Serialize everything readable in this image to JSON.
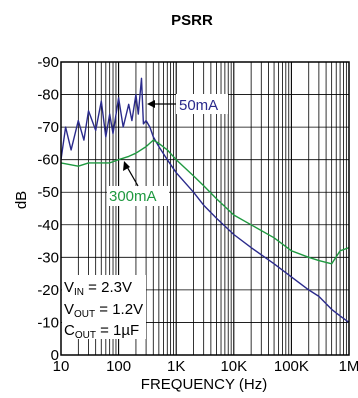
{
  "chart_data": {
    "type": "line",
    "title": "PSRR",
    "xlabel": "FREQUENCY (Hz)",
    "ylabel": "dB",
    "x_scale": "log",
    "xlim": [
      10,
      1000000
    ],
    "ylim": [
      0,
      -90
    ],
    "x_tick_labels": [
      "10",
      "100",
      "1K",
      "10K",
      "100K",
      "1M"
    ],
    "y_tick_labels": [
      "0",
      "-10",
      "-20",
      "-30",
      "-40",
      "-50",
      "-60",
      "-70",
      "-80",
      "-90"
    ],
    "grid": true,
    "series": [
      {
        "name": "50mA",
        "color": "#2b2b8c",
        "x": [
          10,
          12,
          15,
          20,
          25,
          30,
          40,
          50,
          60,
          70,
          80,
          100,
          120,
          150,
          170,
          200,
          220,
          250,
          270,
          300,
          350,
          400,
          500,
          700,
          1000,
          2000,
          3000,
          5000,
          10000,
          20000,
          50000,
          100000,
          200000,
          300000,
          500000,
          700000,
          1000000
        ],
        "y": [
          -60,
          -70,
          -63,
          -72,
          -66,
          -75,
          -69,
          -78,
          -67,
          -74,
          -68,
          -79,
          -70,
          -77,
          -72,
          -80,
          -74,
          -85,
          -71,
          -72,
          -70,
          -67,
          -64,
          -60,
          -56,
          -50,
          -46,
          -42,
          -37,
          -33,
          -28,
          -24,
          -20,
          -18,
          -14,
          -12,
          -10
        ]
      },
      {
        "name": "300mA",
        "color": "#1f9940",
        "x": [
          10,
          20,
          30,
          50,
          70,
          100,
          150,
          200,
          300,
          400,
          500,
          700,
          1000,
          2000,
          3000,
          5000,
          10000,
          20000,
          50000,
          100000,
          200000,
          300000,
          500000,
          700000,
          1000000
        ],
        "y": [
          -59,
          -58,
          -59,
          -59,
          -59,
          -60,
          -61,
          -62,
          -64,
          -66,
          -65,
          -63,
          -60,
          -55,
          -52,
          -48,
          -43,
          -40,
          -36,
          -32,
          -30,
          -29,
          -28,
          -32,
          -33
        ]
      }
    ],
    "annotations": [
      {
        "text": "50mA",
        "color": "#2b2b8c"
      },
      {
        "text": "300mA",
        "color": "#1f9940"
      }
    ],
    "conditions": [
      {
        "main": "V",
        "sub": "IN",
        "rest": " = 2.3V"
      },
      {
        "main": "V",
        "sub": "OUT",
        "rest": " = 1.2V"
      },
      {
        "main": "C",
        "sub": "OUT",
        "rest": " = 1µF"
      }
    ]
  }
}
